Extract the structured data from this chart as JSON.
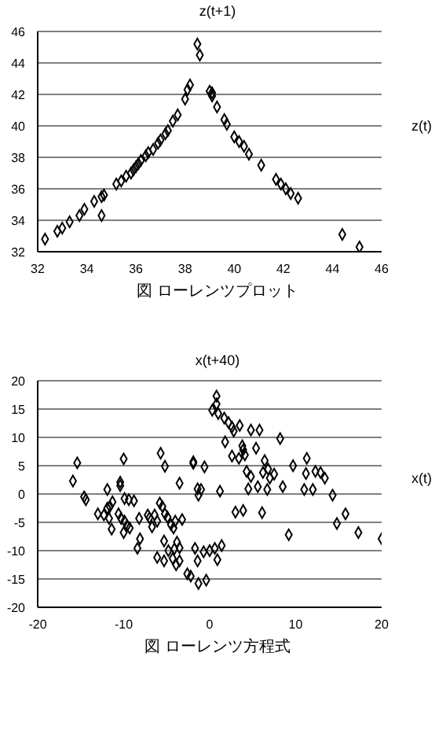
{
  "chart_data": [
    {
      "type": "scatter",
      "ylabel": "z(t+1)",
      "xlabel": "z(t)",
      "annotations": [
        "図 ローレンツプロット"
      ],
      "color": "#000000",
      "marker": "diamond",
      "grid": "y",
      "xlim": [
        32,
        46
      ],
      "ylim": [
        32,
        46
      ],
      "xticks": [
        32,
        34,
        36,
        38,
        40,
        42,
        44,
        46
      ],
      "yticks": [
        32,
        34,
        36,
        38,
        40,
        42,
        44,
        46
      ],
      "x": [
        32.3,
        32.8,
        33.0,
        33.3,
        33.7,
        33.9,
        34.3,
        34.6,
        34.7,
        34.6,
        35.2,
        35.4,
        35.6,
        35.8,
        35.9,
        36.0,
        36.1,
        36.2,
        36.4,
        36.5,
        36.7,
        36.9,
        37.0,
        37.2,
        37.3,
        37.5,
        37.7,
        38.0,
        38.1,
        38.2,
        38.5,
        38.6,
        39.0,
        39.1,
        39.1,
        39.3,
        39.6,
        39.7,
        40.0,
        40.2,
        40.4,
        40.6,
        41.1,
        41.7,
        41.9,
        42.1,
        42.3,
        42.6,
        44.4,
        45.1
      ],
      "values": [
        32.8,
        33.3,
        33.5,
        33.9,
        34.3,
        34.7,
        35.2,
        35.5,
        35.6,
        34.3,
        36.3,
        36.5,
        36.8,
        37.0,
        37.2,
        37.4,
        37.6,
        37.8,
        38.1,
        38.3,
        38.5,
        38.9,
        39.1,
        39.5,
        39.7,
        40.3,
        40.7,
        41.7,
        42.3,
        42.6,
        45.2,
        44.5,
        42.2,
        41.9,
        42.1,
        41.2,
        40.4,
        40.1,
        39.3,
        39.0,
        38.7,
        38.2,
        37.5,
        36.6,
        36.3,
        36.0,
        35.7,
        35.4,
        33.1,
        32.3
      ]
    },
    {
      "type": "scatter",
      "ylabel": "x(t+40)",
      "xlabel": "x(t)",
      "annotations": [
        "図 ローレンツ方程式"
      ],
      "color": "#000000",
      "marker": "diamond",
      "grid": "y",
      "xlim": [
        -20,
        20
      ],
      "ylim": [
        -20,
        20
      ],
      "xticks": [
        -20,
        -10,
        0,
        10,
        20
      ],
      "yticks": [
        -20,
        -15,
        -10,
        -5,
        0,
        5,
        10,
        15,
        20
      ],
      "x": [
        0.8,
        0.8,
        0.3,
        1,
        1.7,
        2.2,
        2.6,
        3.5,
        2.8,
        4.8,
        5.8,
        8.2,
        1.8,
        3.8,
        5.4,
        3.9,
        2.6,
        3.4,
        4.1,
        6.4,
        11.3,
        9.7,
        6.8,
        4.3,
        6.2,
        7.5,
        4.8,
        7,
        11.2,
        12.3,
        12.9,
        13.4,
        4.5,
        5.6,
        6.7,
        8.5,
        11,
        12,
        14.3,
        1.2,
        3,
        3.9,
        6.1,
        14.8,
        15.8,
        9.2,
        17.3,
        20,
        -15.4,
        -15.9,
        -14.6,
        -14.4,
        -13,
        -12.3,
        -11.9,
        -11.6,
        -11.7,
        -11.4,
        -11.3,
        -10.6,
        -10.3,
        -11.9,
        -10.4,
        -10.4,
        -10,
        -9.9,
        -9.4,
        -8.8,
        -9.9,
        -9.6,
        -9.3,
        -10,
        -8.2,
        -8.1,
        -8.4,
        -7.2,
        -7,
        -6.7,
        -6.4,
        -6.1,
        -5.8,
        -5.5,
        -5.2,
        -4.9,
        -4.5,
        -4.2,
        -4,
        -3.2,
        -5.7,
        -5.2,
        -3.5,
        -1.9,
        -1.9,
        -1.4,
        -1,
        -1.3,
        -0.6,
        -5.3,
        -3.8,
        -3.5,
        -6.1,
        -5.3,
        -4.3,
        -3.9,
        -3.5,
        -4.8,
        -4.1,
        -2.6,
        -2.2,
        -1.4,
        -1.3,
        -0.4,
        -0.7,
        0,
        0.6,
        1.4,
        0.9,
        -1.7
      ],
      "values": [
        17.3,
        15.9,
        14.8,
        14.2,
        13.4,
        12.6,
        11.8,
        12.1,
        11.1,
        11.3,
        11.3,
        9.8,
        9.2,
        8.5,
        8.1,
        7.8,
        6.7,
        6.3,
        6.9,
        5.9,
        6.3,
        5,
        4.4,
        4,
        3.8,
        3.5,
        3.1,
        2.8,
        3.6,
        4,
        3.8,
        2.8,
        0.9,
        1.3,
        0.8,
        1.3,
        0.8,
        0.8,
        -0.2,
        0.5,
        -3.2,
        -2.9,
        -3.3,
        -5.2,
        -3.5,
        -7.2,
        -6.8,
        -7.9,
        5.5,
        2.3,
        -0.5,
        -1,
        -3.5,
        -3.7,
        -2.5,
        -2.2,
        -4.3,
        -6.2,
        -1.4,
        -3.5,
        -4.3,
        0.8,
        2.1,
        1.5,
        6.2,
        -0.8,
        -1,
        -1.2,
        -4.8,
        -5.6,
        -6,
        -6.8,
        -4.3,
        -7.9,
        -9.6,
        -3.7,
        -4.2,
        -5.8,
        -3.7,
        -4.8,
        -1.6,
        -2.2,
        -3.5,
        -4.1,
        -5.4,
        -6,
        -4.8,
        -4.5,
        7.2,
        4.9,
        1.9,
        5.7,
        5.4,
        0.9,
        0.8,
        -0.2,
        4.8,
        -8.3,
        -8.5,
        -9.5,
        -11.2,
        -11.8,
        -11.4,
        -12.5,
        -11.8,
        -10,
        -9.7,
        -14.1,
        -14.5,
        -11.8,
        -15.8,
        -15.2,
        -10.2,
        -10,
        -9.6,
        -9.1,
        -11.6,
        -9.6
      ]
    }
  ]
}
